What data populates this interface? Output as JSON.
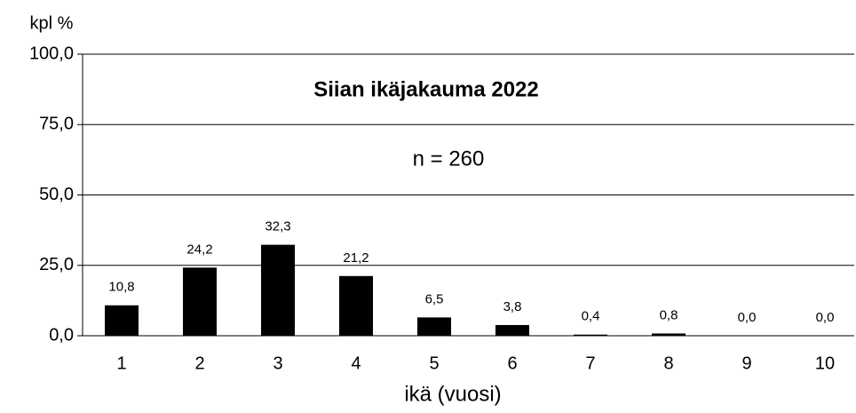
{
  "chart_data": {
    "type": "bar",
    "title": "Siian ikäjakauma 2022",
    "subtitle": "n = 260",
    "ylabel": "kpl %",
    "xlabel": "ikä (vuosi)",
    "categories": [
      "1",
      "2",
      "3",
      "4",
      "5",
      "6",
      "7",
      "8",
      "9",
      "10"
    ],
    "values": [
      10.8,
      24.2,
      32.3,
      21.2,
      6.5,
      3.8,
      0.4,
      0.8,
      0.0,
      0.0
    ],
    "value_labels": [
      "10,8",
      "24,2",
      "32,3",
      "21,2",
      "6,5",
      "3,8",
      "0,4",
      "0,8",
      "0,0",
      "0,0"
    ],
    "color": "#000000",
    "ylim": [
      0,
      100
    ],
    "yticks": [
      {
        "value": 0,
        "label": "0,0"
      },
      {
        "value": 25,
        "label": "25,0"
      },
      {
        "value": 50,
        "label": "50,0"
      },
      {
        "value": 75,
        "label": "75,0"
      },
      {
        "value": 100,
        "label": "100,0"
      }
    ],
    "grid": true
  }
}
